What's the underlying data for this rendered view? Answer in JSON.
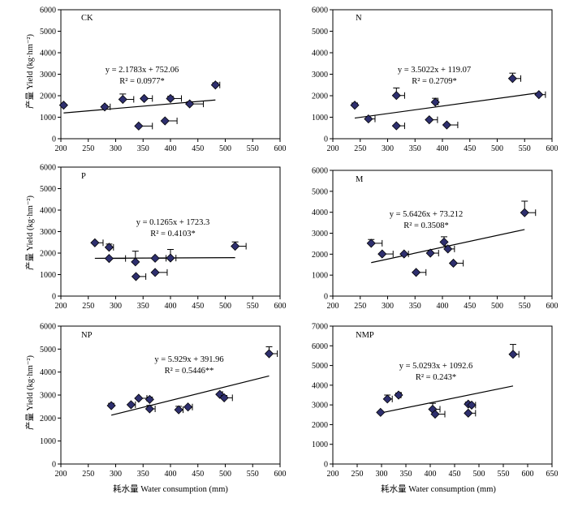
{
  "figure": {
    "ylabel": "产量 Yield (kg·hm⁻²)",
    "xlabel": "耗水量 Water consumption (mm)"
  },
  "chart_data": [
    {
      "type": "scatter",
      "label": "CK",
      "equation": "y = 2.1783x + 752.06",
      "r2": "R² = 0.0977*",
      "xlim": [
        200,
        600
      ],
      "ylim": [
        0,
        6000
      ],
      "xticks": [
        200,
        250,
        300,
        350,
        400,
        450,
        500,
        550,
        600
      ],
      "yticks": [
        0,
        1000,
        2000,
        3000,
        4000,
        5000,
        6000
      ],
      "points": [
        {
          "x": 205,
          "y": 1560,
          "xerr": 0,
          "yerr": 0
        },
        {
          "x": 280,
          "y": 1480,
          "xerr": 10,
          "yerr": 60
        },
        {
          "x": 313,
          "y": 1830,
          "xerr": 20,
          "yerr": 250
        },
        {
          "x": 342,
          "y": 590,
          "xerr": 25,
          "yerr": 0
        },
        {
          "x": 352,
          "y": 1870,
          "xerr": 15,
          "yerr": 0
        },
        {
          "x": 390,
          "y": 830,
          "xerr": 22,
          "yerr": 0
        },
        {
          "x": 400,
          "y": 1870,
          "xerr": 20,
          "yerr": 100
        },
        {
          "x": 435,
          "y": 1620,
          "xerr": 25,
          "yerr": 100
        },
        {
          "x": 482,
          "y": 2500,
          "xerr": 8,
          "yerr": 100
        }
      ]
    },
    {
      "type": "scatter",
      "label": "N",
      "equation": "y = 3.5022x + 119.07",
      "r2": "R² = 0.2709*",
      "xlim": [
        200,
        600
      ],
      "ylim": [
        0,
        6000
      ],
      "xticks": [
        200,
        250,
        300,
        350,
        400,
        450,
        500,
        550,
        600
      ],
      "yticks": [
        0,
        1000,
        2000,
        3000,
        4000,
        5000,
        6000
      ],
      "points": [
        {
          "x": 240,
          "y": 1560,
          "xerr": 0,
          "yerr": 100
        },
        {
          "x": 265,
          "y": 920,
          "xerr": 12,
          "yerr": 0
        },
        {
          "x": 316,
          "y": 2010,
          "xerr": 15,
          "yerr": 350
        },
        {
          "x": 316,
          "y": 600,
          "xerr": 15,
          "yerr": 0
        },
        {
          "x": 376,
          "y": 880,
          "xerr": 15,
          "yerr": 0
        },
        {
          "x": 387,
          "y": 1700,
          "xerr": 5,
          "yerr": 180
        },
        {
          "x": 408,
          "y": 640,
          "xerr": 20,
          "yerr": 0
        },
        {
          "x": 528,
          "y": 2800,
          "xerr": 15,
          "yerr": 250
        },
        {
          "x": 576,
          "y": 2050,
          "xerr": 12,
          "yerr": 0
        }
      ]
    },
    {
      "type": "scatter",
      "label": "P",
      "equation": "y = 0.1265x + 1723.3",
      "r2": "R² = 0.4103*",
      "xlim": [
        200,
        600
      ],
      "ylim": [
        0,
        6000
      ],
      "xticks": [
        200,
        250,
        300,
        350,
        400,
        450,
        500,
        550,
        600
      ],
      "yticks": [
        0,
        1000,
        2000,
        3000,
        4000,
        5000,
        6000
      ],
      "points": [
        {
          "x": 262,
          "y": 2480,
          "xerr": 15,
          "yerr": 0
        },
        {
          "x": 288,
          "y": 2270,
          "xerr": 8,
          "yerr": 150
        },
        {
          "x": 288,
          "y": 1750,
          "xerr": 30,
          "yerr": 0
        },
        {
          "x": 336,
          "y": 1590,
          "xerr": 0,
          "yerr": 500
        },
        {
          "x": 337,
          "y": 910,
          "xerr": 18,
          "yerr": 0
        },
        {
          "x": 372,
          "y": 1760,
          "xerr": 20,
          "yerr": 0
        },
        {
          "x": 372,
          "y": 1100,
          "xerr": 22,
          "yerr": 0
        },
        {
          "x": 400,
          "y": 1770,
          "xerr": 10,
          "yerr": 400
        },
        {
          "x": 518,
          "y": 2320,
          "xerr": 20,
          "yerr": 200
        }
      ]
    },
    {
      "type": "scatter",
      "label": "M",
      "equation": "y = 5.6426x + 73.212",
      "r2": "R² = 0.3508*",
      "xlim": [
        200,
        600
      ],
      "ylim": [
        0,
        6000
      ],
      "xticks": [
        200,
        250,
        300,
        350,
        400,
        450,
        500,
        550,
        600
      ],
      "yticks": [
        0,
        1000,
        2000,
        3000,
        4000,
        5000,
        6000
      ],
      "points": [
        {
          "x": 270,
          "y": 2520,
          "xerr": 20,
          "yerr": 180
        },
        {
          "x": 290,
          "y": 2010,
          "xerr": 20,
          "yerr": 0
        },
        {
          "x": 330,
          "y": 2010,
          "xerr": 8,
          "yerr": 0
        },
        {
          "x": 352,
          "y": 1130,
          "xerr": 18,
          "yerr": 0
        },
        {
          "x": 378,
          "y": 2050,
          "xerr": 15,
          "yerr": 0
        },
        {
          "x": 403,
          "y": 2580,
          "xerr": 0,
          "yerr": 250
        },
        {
          "x": 410,
          "y": 2250,
          "xerr": 12,
          "yerr": 150
        },
        {
          "x": 420,
          "y": 1570,
          "xerr": 18,
          "yerr": 0
        },
        {
          "x": 550,
          "y": 3980,
          "xerr": 20,
          "yerr": 550
        }
      ]
    },
    {
      "type": "scatter",
      "label": "NP",
      "equation": "y = 5.929x + 391.96",
      "r2": "R² = 0.5446**",
      "xlim": [
        200,
        600
      ],
      "ylim": [
        0,
        6000
      ],
      "xticks": [
        200,
        250,
        300,
        350,
        400,
        450,
        500,
        550,
        600
      ],
      "yticks": [
        0,
        1000,
        2000,
        3000,
        4000,
        5000,
        6000
      ],
      "points": [
        {
          "x": 292,
          "y": 2540,
          "xerr": 0,
          "yerr": 100
        },
        {
          "x": 328,
          "y": 2580,
          "xerr": 8,
          "yerr": 0
        },
        {
          "x": 342,
          "y": 2860,
          "xerr": 15,
          "yerr": 0
        },
        {
          "x": 362,
          "y": 2400,
          "xerr": 10,
          "yerr": 150
        },
        {
          "x": 362,
          "y": 2810,
          "xerr": 0,
          "yerr": 100
        },
        {
          "x": 415,
          "y": 2360,
          "xerr": 8,
          "yerr": 150
        },
        {
          "x": 432,
          "y": 2480,
          "xerr": 8,
          "yerr": 0
        },
        {
          "x": 490,
          "y": 3030,
          "xerr": 5,
          "yerr": 0
        },
        {
          "x": 498,
          "y": 2880,
          "xerr": 15,
          "yerr": 100
        },
        {
          "x": 580,
          "y": 4800,
          "xerr": 15,
          "yerr": 300
        }
      ]
    },
    {
      "type": "scatter",
      "label": "NMP",
      "equation": "y = 5.0293x + 1092.6",
      "r2": "R² = 0.243*",
      "xlim": [
        200,
        650
      ],
      "ylim": [
        0,
        7000
      ],
      "xticks": [
        200,
        250,
        300,
        350,
        400,
        450,
        500,
        550,
        600,
        650
      ],
      "yticks": [
        0,
        1000,
        2000,
        3000,
        4000,
        5000,
        6000,
        7000
      ],
      "points": [
        {
          "x": 298,
          "y": 2620,
          "xerr": 0,
          "yerr": 0
        },
        {
          "x": 312,
          "y": 3300,
          "xerr": 10,
          "yerr": 200
        },
        {
          "x": 335,
          "y": 3500,
          "xerr": 5,
          "yerr": 100
        },
        {
          "x": 405,
          "y": 2780,
          "xerr": 15,
          "yerr": 300
        },
        {
          "x": 410,
          "y": 2530,
          "xerr": 20,
          "yerr": 0
        },
        {
          "x": 478,
          "y": 3040,
          "xerr": 0,
          "yerr": 100
        },
        {
          "x": 478,
          "y": 2580,
          "xerr": 15,
          "yerr": 0
        },
        {
          "x": 485,
          "y": 2990,
          "xerr": 8,
          "yerr": 0
        },
        {
          "x": 570,
          "y": 5570,
          "xerr": 12,
          "yerr": 500
        }
      ]
    }
  ]
}
